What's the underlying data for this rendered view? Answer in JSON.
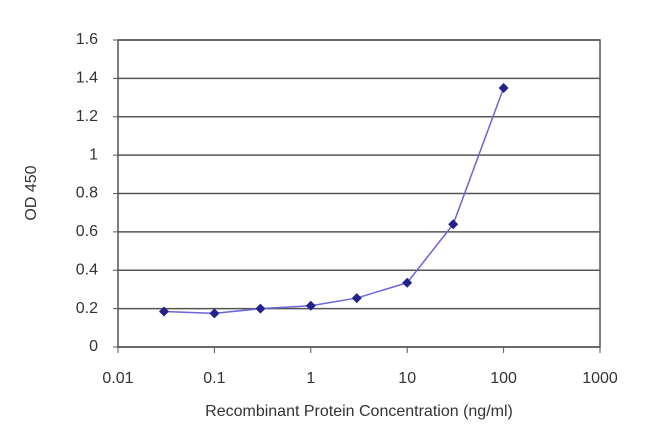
{
  "chart_data": {
    "type": "line",
    "x_label": "Recombinant Protein Concentration (ng/ml)",
    "y_label": "OD 450",
    "x": [
      0.03,
      0.1,
      0.3,
      1,
      3,
      10,
      30,
      100
    ],
    "values": [
      0.185,
      0.175,
      0.2,
      0.215,
      0.255,
      0.335,
      0.64,
      1.35
    ],
    "line_color": "#6a64d8",
    "marker_color": "#22228a",
    "x_log": true,
    "xlim": [
      0.01,
      1000
    ],
    "xticks": [
      0.01,
      0.1,
      1,
      10,
      100,
      1000
    ],
    "ylim": [
      0,
      1.6
    ],
    "yticks": [
      0,
      0.2,
      0.4,
      0.6,
      0.8,
      1,
      1.2,
      1.4,
      1.6
    ],
    "grid": true
  }
}
